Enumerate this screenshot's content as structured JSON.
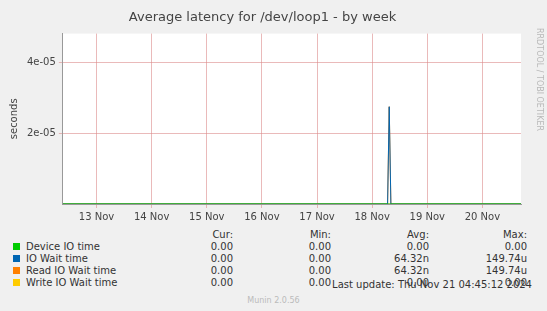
{
  "chart_data": {
    "type": "line",
    "title": "Average latency for /dev/loop1 - by week",
    "y_label": "seconds",
    "side_text": "RRDTOOL / TOBI OETIKER",
    "x": [
      12.89,
      18.78,
      18.81,
      18.84,
      21.2
    ],
    "xlim": [
      12.89,
      21.2
    ],
    "xticks": [
      {
        "value": 13.5,
        "label": "13 Nov"
      },
      {
        "value": 14.5,
        "label": "14 Nov"
      },
      {
        "value": 15.5,
        "label": "15 Nov"
      },
      {
        "value": 16.5,
        "label": "16 Nov"
      },
      {
        "value": 17.5,
        "label": "17 Nov"
      },
      {
        "value": 18.5,
        "label": "18 Nov"
      },
      {
        "value": 19.5,
        "label": "19 Nov"
      },
      {
        "value": 20.5,
        "label": "20 Nov"
      }
    ],
    "ylim": [
      0,
      4.8e-05
    ],
    "yticks": [
      {
        "value": 2e-05,
        "label": "2e-05"
      },
      {
        "value": 4e-05,
        "label": "4e-05"
      }
    ],
    "grid": true,
    "stat_headers": [
      "Cur:",
      "Min:",
      "Avg:",
      "Max:"
    ],
    "series": [
      {
        "name": "Device IO time",
        "color": "#00cc00",
        "values": [
          0,
          0,
          0,
          0,
          0
        ],
        "stats": [
          "0.00",
          "0.00",
          "0.00",
          "0.00"
        ]
      },
      {
        "name": "IO Wait time",
        "color": "#0066b3",
        "values": [
          0,
          0,
          2.74e-05,
          0,
          0
        ],
        "stats": [
          "0.00",
          "0.00",
          "64.32n",
          "149.74u"
        ]
      },
      {
        "name": "Read IO Wait time",
        "color": "#ff8000",
        "values": [
          0,
          0,
          2.74e-05,
          0,
          0
        ],
        "stats": [
          "0.00",
          "0.00",
          "64.32n",
          "149.74u"
        ]
      },
      {
        "name": "Write IO Wait time",
        "color": "#ffcc00",
        "values": [
          0,
          0,
          0,
          0,
          0
        ],
        "stats": [
          "0.00",
          "0.00",
          "0.00",
          "0.00"
        ]
      }
    ],
    "footer": "Last update: Thu Nov 21 04:45:12 2024",
    "credit": "Munin 2.0.56"
  }
}
